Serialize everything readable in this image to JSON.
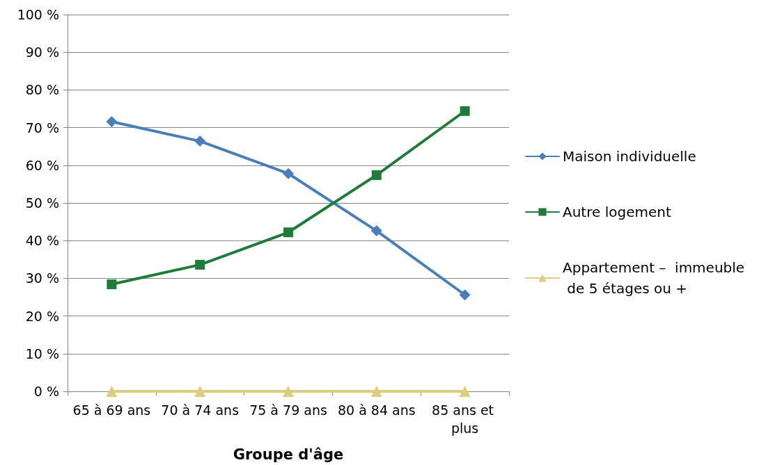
{
  "chart_data": {
    "type": "line",
    "xlabel": "Groupe d'âge",
    "categories": [
      "65 à 69 ans",
      "70 à 74 ans",
      "75 à 79 ans",
      "80 à 84 ans",
      "85 ans et plus"
    ],
    "series": [
      {
        "name": "Maison individuelle",
        "color": "#4a7ebb",
        "marker": "diamond",
        "values": [
          71.6,
          66.4,
          57.8,
          42.6,
          25.6
        ]
      },
      {
        "name": "Autre logement",
        "color": "#1e7b3a",
        "marker": "square",
        "values": [
          28.4,
          33.6,
          42.2,
          57.4,
          74.4
        ]
      },
      {
        "name": "Appartement –  immeuble de 5 étages ou +",
        "color": "#dccd7c",
        "marker": "triangle",
        "values": [
          0,
          0,
          0,
          0,
          0
        ]
      }
    ],
    "ylim": [
      0,
      100
    ],
    "yticks": [
      {
        "value": 0,
        "label": "0 %"
      },
      {
        "value": 10,
        "label": "10 %"
      },
      {
        "value": 20,
        "label": "20 %"
      },
      {
        "value": 30,
        "label": "30 %"
      },
      {
        "value": 40,
        "label": "40 %"
      },
      {
        "value": 50,
        "label": "50 %"
      },
      {
        "value": 60,
        "label": "60 %"
      },
      {
        "value": 70,
        "label": "70 %"
      },
      {
        "value": 80,
        "label": "80 %"
      },
      {
        "value": 90,
        "label": "90 %"
      },
      {
        "value": 100,
        "label": "100 %"
      }
    ],
    "grid": "y",
    "legend": "right",
    "line_style": "solid"
  }
}
